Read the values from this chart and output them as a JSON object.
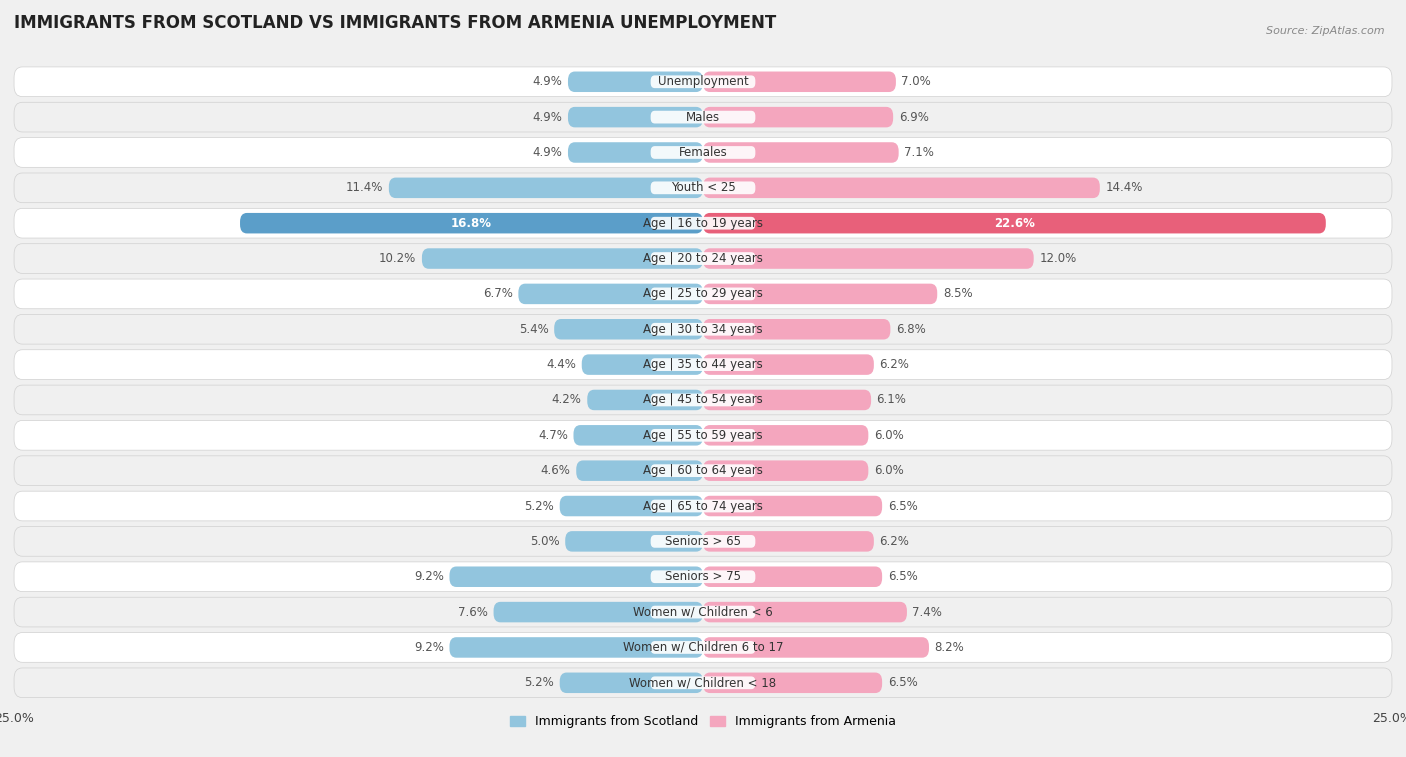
{
  "title": "IMMIGRANTS FROM SCOTLAND VS IMMIGRANTS FROM ARMENIA UNEMPLOYMENT",
  "source": "Source: ZipAtlas.com",
  "categories": [
    "Unemployment",
    "Males",
    "Females",
    "Youth < 25",
    "Age | 16 to 19 years",
    "Age | 20 to 24 years",
    "Age | 25 to 29 years",
    "Age | 30 to 34 years",
    "Age | 35 to 44 years",
    "Age | 45 to 54 years",
    "Age | 55 to 59 years",
    "Age | 60 to 64 years",
    "Age | 65 to 74 years",
    "Seniors > 65",
    "Seniors > 75",
    "Women w/ Children < 6",
    "Women w/ Children 6 to 17",
    "Women w/ Children < 18"
  ],
  "scotland_values": [
    4.9,
    4.9,
    4.9,
    11.4,
    16.8,
    10.2,
    6.7,
    5.4,
    4.4,
    4.2,
    4.7,
    4.6,
    5.2,
    5.0,
    9.2,
    7.6,
    9.2,
    5.2
  ],
  "armenia_values": [
    7.0,
    6.9,
    7.1,
    14.4,
    22.6,
    12.0,
    8.5,
    6.8,
    6.2,
    6.1,
    6.0,
    6.0,
    6.5,
    6.2,
    6.5,
    7.4,
    8.2,
    6.5
  ],
  "scotland_color": "#92C5DE",
  "armenia_color": "#F4A6BE",
  "scotland_label": "Immigrants from Scotland",
  "armenia_label": "Immigrants from Armenia",
  "xlim": 25.0,
  "background_color": "#f0f0f0",
  "row_bg_even": "#ffffff",
  "row_bg_odd": "#f0f0f0",
  "highlight_row": 4,
  "highlight_scotland_color": "#5B9EC9",
  "highlight_armenia_color": "#E8607A",
  "title_fontsize": 12,
  "label_fontsize": 8.5,
  "value_fontsize": 8.5
}
